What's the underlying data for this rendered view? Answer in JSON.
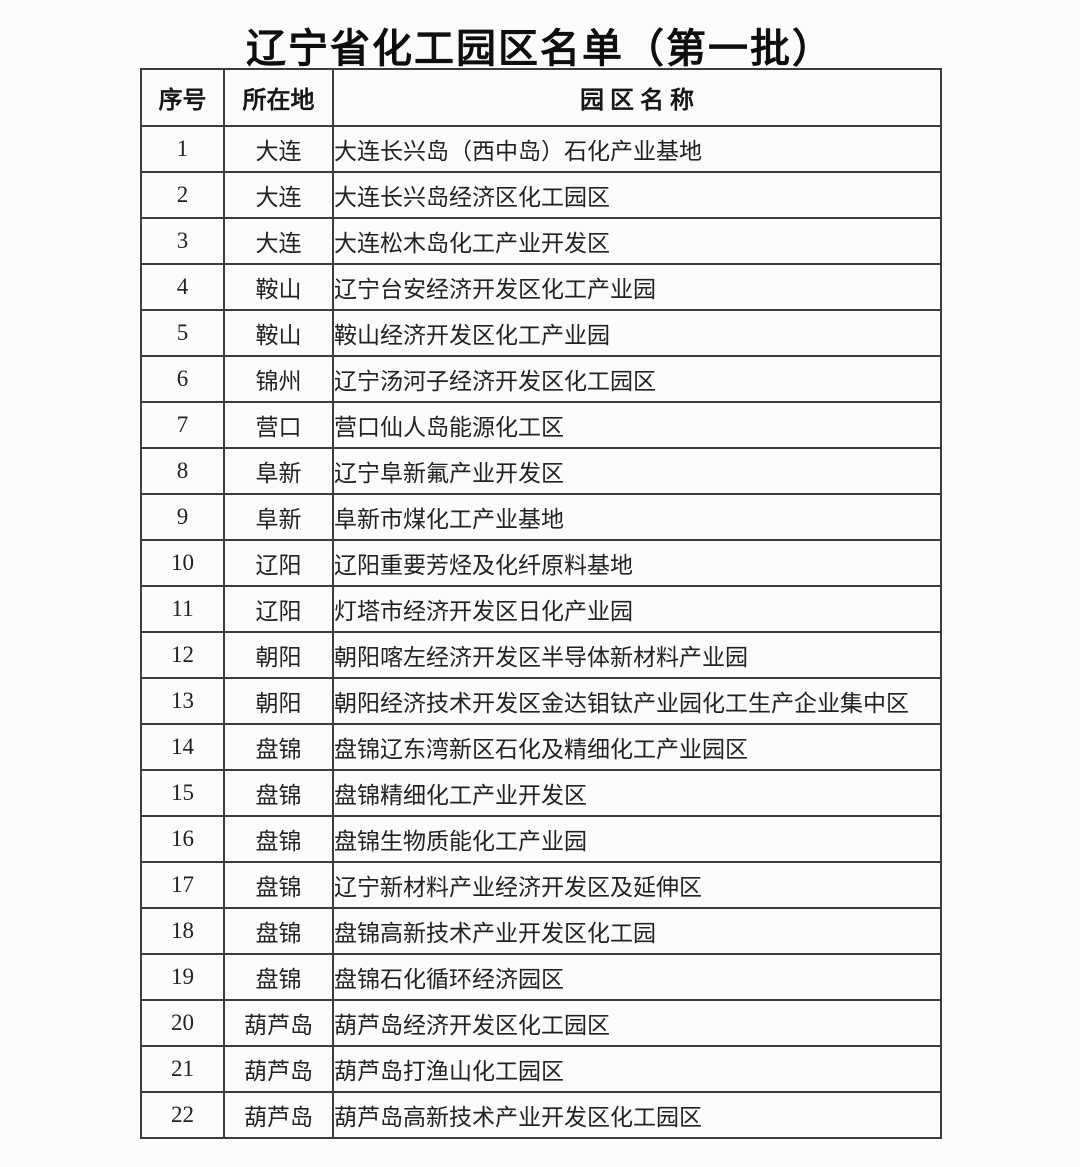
{
  "page": {
    "title": "辽宁省化工园区名单（第一批）"
  },
  "table": {
    "headers": {
      "no": "序号",
      "city": "所在地",
      "park": "园 区 名 称"
    },
    "rows": [
      {
        "no": "1",
        "city": "大连",
        "park": "大连长兴岛（西中岛）石化产业基地"
      },
      {
        "no": "2",
        "city": "大连",
        "park": "大连长兴岛经济区化工园区"
      },
      {
        "no": "3",
        "city": "大连",
        "park": "大连松木岛化工产业开发区"
      },
      {
        "no": "4",
        "city": "鞍山",
        "park": "辽宁台安经济开发区化工产业园"
      },
      {
        "no": "5",
        "city": "鞍山",
        "park": "鞍山经济开发区化工产业园"
      },
      {
        "no": "6",
        "city": "锦州",
        "park": "辽宁汤河子经济开发区化工园区"
      },
      {
        "no": "7",
        "city": "营口",
        "park": "营口仙人岛能源化工区"
      },
      {
        "no": "8",
        "city": "阜新",
        "park": "辽宁阜新氟产业开发区"
      },
      {
        "no": "9",
        "city": "阜新",
        "park": "阜新市煤化工产业基地"
      },
      {
        "no": "10",
        "city": "辽阳",
        "park": "辽阳重要芳烃及化纤原料基地"
      },
      {
        "no": "11",
        "city": "辽阳",
        "park": "灯塔市经济开发区日化产业园"
      },
      {
        "no": "12",
        "city": "朝阳",
        "park": "朝阳喀左经济开发区半导体新材料产业园"
      },
      {
        "no": "13",
        "city": "朝阳",
        "park": "朝阳经济技术开发区金达钼钛产业园化工生产企业集中区"
      },
      {
        "no": "14",
        "city": "盘锦",
        "park": "盘锦辽东湾新区石化及精细化工产业园区"
      },
      {
        "no": "15",
        "city": "盘锦",
        "park": "盘锦精细化工产业开发区"
      },
      {
        "no": "16",
        "city": "盘锦",
        "park": "盘锦生物质能化工产业园"
      },
      {
        "no": "17",
        "city": "盘锦",
        "park": "辽宁新材料产业经济开发区及延伸区"
      },
      {
        "no": "18",
        "city": "盘锦",
        "park": "盘锦高新技术产业开发区化工园"
      },
      {
        "no": "19",
        "city": "盘锦",
        "park": "盘锦石化循环经济园区"
      },
      {
        "no": "20",
        "city": "葫芦岛",
        "park": "葫芦岛经济开发区化工园区"
      },
      {
        "no": "21",
        "city": "葫芦岛",
        "park": "葫芦岛打渔山化工园区"
      },
      {
        "no": "22",
        "city": "葫芦岛",
        "park": "葫芦岛高新技术产业开发区化工园区"
      }
    ]
  },
  "colors": {
    "background": "#fcfbfa",
    "text": "#1d1d1d",
    "border": "#3d3d3d"
  }
}
